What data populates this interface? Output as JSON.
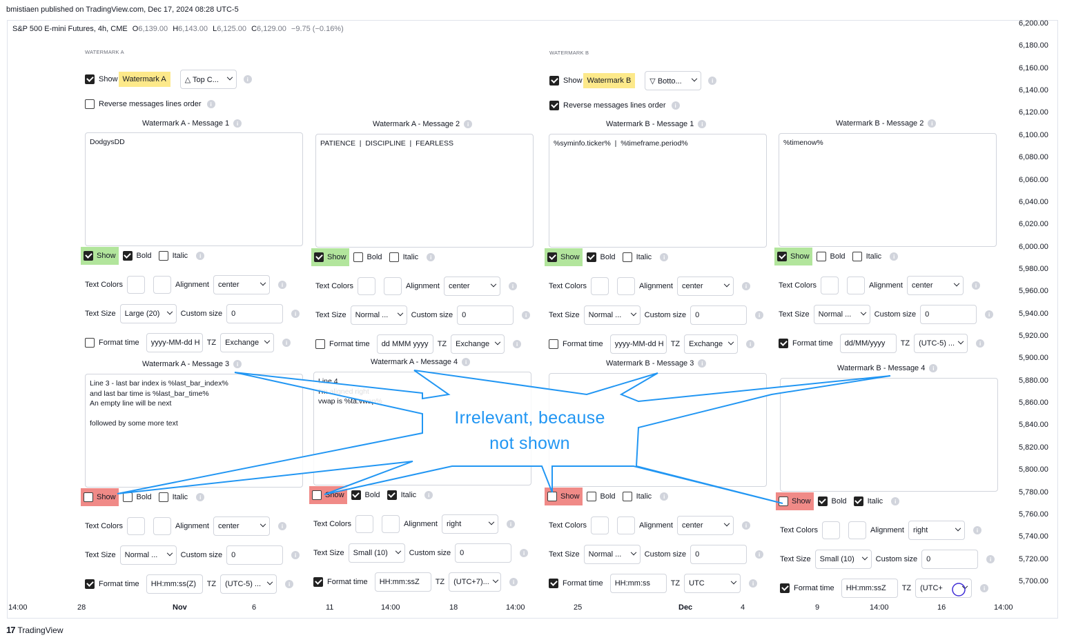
{
  "publish_line": "bmistiaen published on TradingView.com, Dec 17, 2024 08:28 UTC-5",
  "symbol": {
    "name": "S&P 500 E-mini Futures, 4h, CME",
    "o_label": "O",
    "o": "6,139.00",
    "h_label": "H",
    "h": "6,143.00",
    "l_label": "L",
    "l": "6,125.00",
    "c_label": "C",
    "c": "6,129.00",
    "change": "−9.75 (−0.16%)"
  },
  "price_axis": [
    "6,200.00",
    "6,180.00",
    "6,160.00",
    "6,140.00",
    "6,120.00",
    "6,100.00",
    "6,080.00",
    "6,060.00",
    "6,040.00",
    "6,020.00",
    "6,000.00",
    "5,980.00",
    "5,960.00",
    "5,940.00",
    "5,920.00",
    "5,900.00",
    "5,880.00",
    "5,860.00",
    "5,840.00",
    "5,820.00",
    "5,800.00",
    "5,780.00",
    "5,760.00",
    "5,740.00",
    "5,720.00",
    "5,700.00"
  ],
  "time_axis": [
    "14:00",
    "28",
    "Nov",
    "6",
    "11",
    "14:00",
    "18",
    "14:00",
    "25",
    "Dec",
    "4",
    "9",
    "14:00",
    "16",
    "14:00"
  ],
  "brand": {
    "mark": "17",
    "name": "TradingView"
  },
  "labels": {
    "show": "Show",
    "bold": "Bold",
    "italic": "Italic",
    "text_colors": "Text Colors",
    "alignment": "Alignment",
    "text_size": "Text Size",
    "custom_size": "Custom size",
    "format_time": "Format time",
    "tz": "TZ",
    "reverse": "Reverse messages lines order",
    "info": "i"
  },
  "wm_a": {
    "group": "WATERMARK A",
    "show_label": "Watermark A",
    "position": "△ Top C...",
    "m1": {
      "title": "Watermark A - Message 1",
      "text": "DodgysDD",
      "alignment": "center",
      "text_size": "Large (20)",
      "custom_size": "0",
      "time_format": "yyyy-MM-dd H",
      "tz": "Exchange"
    },
    "m2": {
      "title": "Watermark A - Message 2",
      "text": "PATIENCE  |  DISCIPLINE  |  FEARLESS",
      "alignment": "center",
      "text_size": "Normal ...",
      "custom_size": "0",
      "time_format": "dd MMM yyyy",
      "tz": "Exchange"
    },
    "m3": {
      "title": "Watermark A - Message 3",
      "text": "Line 3 - last bar index is %last_bar_index%\nand last bar time is %last_bar_time%\nAn empty line will be next\n\nfollowed by some more text",
      "alignment": "center",
      "text_size": "Normal ...",
      "custom_size": "0",
      "time_format": "HH:mm:ss(Z)",
      "tz": "(UTC-5) ..."
    },
    "m4": {
      "title": "Watermark A - Message 4",
      "text": "Line 4\nI'm aligned right\nvwap is %ta.vwap%",
      "alignment": "right",
      "text_size": "Small (10)",
      "custom_size": "0",
      "time_format": "HH:mm:ssZ",
      "tz": "(UTC+7)..."
    }
  },
  "wm_b": {
    "group": "WATERMARK B",
    "show_label": "Watermark B",
    "position": "▽ Botto...",
    "m1": {
      "title": "Watermark B - Message 1",
      "text": "%syminfo.ticker%  |  %timeframe.period%",
      "alignment": "center",
      "text_size": "Normal ...",
      "custom_size": "0",
      "time_format": "yyyy-MM-dd H",
      "tz": "Exchange"
    },
    "m2": {
      "title": "Watermark B - Message 2",
      "text": "%timenow%",
      "alignment": "center",
      "text_size": "Normal ...",
      "custom_size": "0",
      "time_format": "dd/MM/yyyy",
      "tz": "(UTC-5) ..."
    },
    "m3": {
      "title": "Watermark B - Message 3",
      "text": "",
      "alignment": "center",
      "text_size": "Normal ...",
      "custom_size": "0",
      "time_format": "HH:mm:ss",
      "tz": "UTC"
    },
    "m4": {
      "title": "Watermark B - Message 4",
      "text": "",
      "alignment": "right",
      "text_size": "Small (10)",
      "custom_size": "0",
      "time_format": "HH:mm:ssZ",
      "tz": "(UTC+"
    }
  },
  "callout": {
    "line1": "Irrelevant, because",
    "line2": "not shown",
    "color": "#2196f3"
  },
  "colors": {
    "highlight_yellow": "#fde98a",
    "highlight_green": "#b2e59c",
    "highlight_red": "#f08a87"
  }
}
